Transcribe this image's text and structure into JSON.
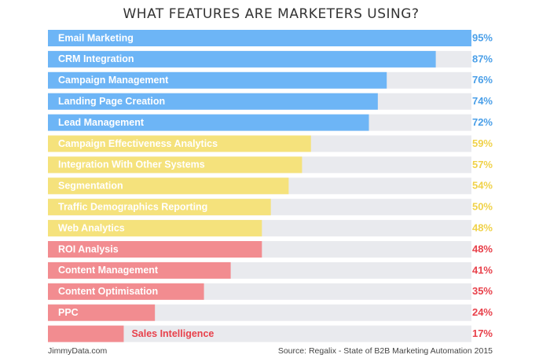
{
  "chart_data": {
    "type": "hbar",
    "title": "WHAT FEATURES ARE MARKETERS USING?",
    "categories": [
      "Email Marketing",
      "CRM Integration",
      "Campaign Management",
      "Landing Page Creation",
      "Lead Management",
      "Campaign Effectiveness Analytics",
      "Integration With Other Systems",
      "Segmentation",
      "Traffic Demographics Reporting",
      "Web Analytics",
      "ROI Analysis",
      "Content Management",
      "Content Optimisation",
      "PPC",
      "Sales Intelligence"
    ],
    "values": [
      95,
      87,
      76,
      74,
      72,
      59,
      57,
      54,
      50,
      48,
      48,
      41,
      35,
      24,
      17
    ],
    "value_labels": [
      "95%",
      "87%",
      "76%",
      "74%",
      "72%",
      "59%",
      "57%",
      "54%",
      "50%",
      "48%",
      "48%",
      "41%",
      "35%",
      "24%",
      "17%"
    ],
    "colors": [
      "#6db5f6",
      "#6db5f6",
      "#6db5f6",
      "#6db5f6",
      "#6db5f6",
      "#f5e27c",
      "#f5e27c",
      "#f5e27c",
      "#f5e27c",
      "#f5e27c",
      "#f28c90",
      "#f28c90",
      "#f28c90",
      "#f28c90",
      "#f28c90"
    ],
    "text_colors": [
      "#4a9fe8",
      "#4a9fe8",
      "#4a9fe8",
      "#4a9fe8",
      "#4a9fe8",
      "#f0d24a",
      "#f0d24a",
      "#f0d24a",
      "#f0d24a",
      "#f0d24a",
      "#e8414b",
      "#e8414b",
      "#e8414b",
      "#e8414b",
      "#e8414b"
    ],
    "track_color": "#e9eaee",
    "credit": "JimmyData.com",
    "source": "Source: Regalix - State of B2B Marketing Automation 2015"
  }
}
